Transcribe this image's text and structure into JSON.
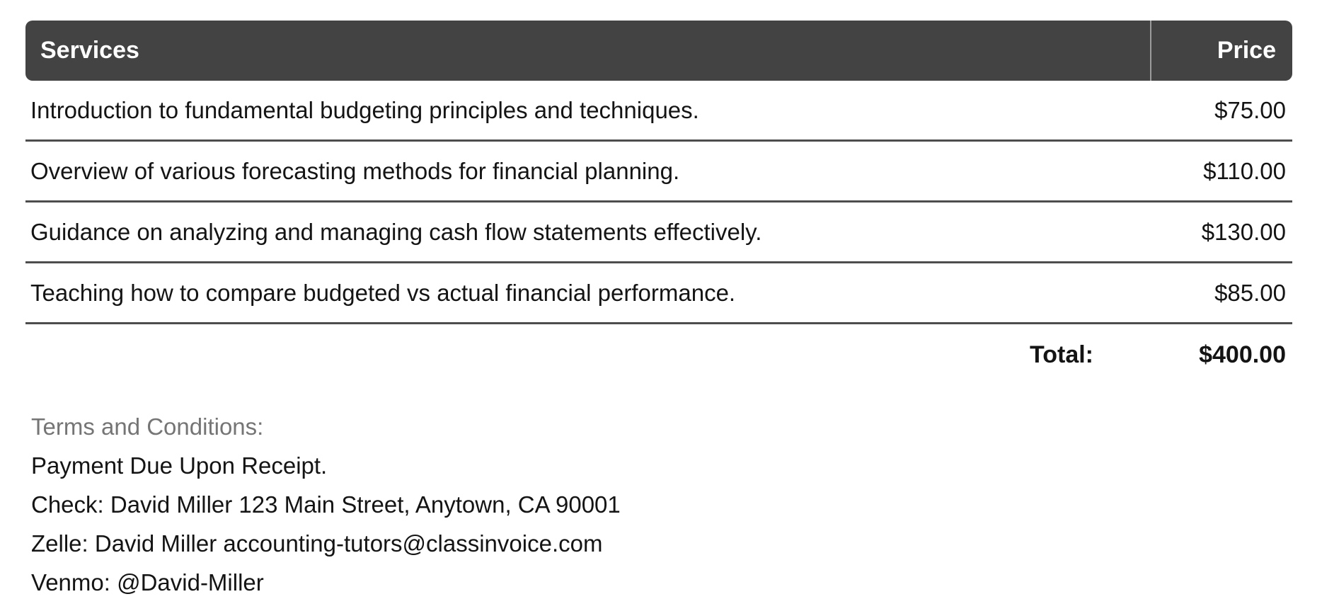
{
  "table": {
    "header": {
      "services": "Services",
      "price": "Price"
    },
    "rows": [
      {
        "description": "Introduction to fundamental budgeting principles and techniques.",
        "price": "$75.00"
      },
      {
        "description": "Overview of various forecasting methods for financial planning.",
        "price": "$110.00"
      },
      {
        "description": "Guidance on analyzing and managing cash flow statements effectively.",
        "price": "$130.00"
      },
      {
        "description": "Teaching how to compare budgeted vs actual financial performance.",
        "price": "$85.00"
      }
    ],
    "total": {
      "label": "Total:",
      "value": "$400.00"
    }
  },
  "terms": {
    "heading": "Terms and Conditions:",
    "lines": [
      "Payment Due Upon Receipt.",
      "Check: David Miller 123 Main Street, Anytown, CA 90001",
      "Zelle: David Miller accounting-tutors@classinvoice.com",
      "Venmo: @David-Miller"
    ]
  },
  "colors": {
    "header_bg": "#434343",
    "header_text": "#ffffff",
    "row_separator": "#4d4d4d",
    "body_text": "#141414",
    "terms_heading_text": "#757575"
  }
}
